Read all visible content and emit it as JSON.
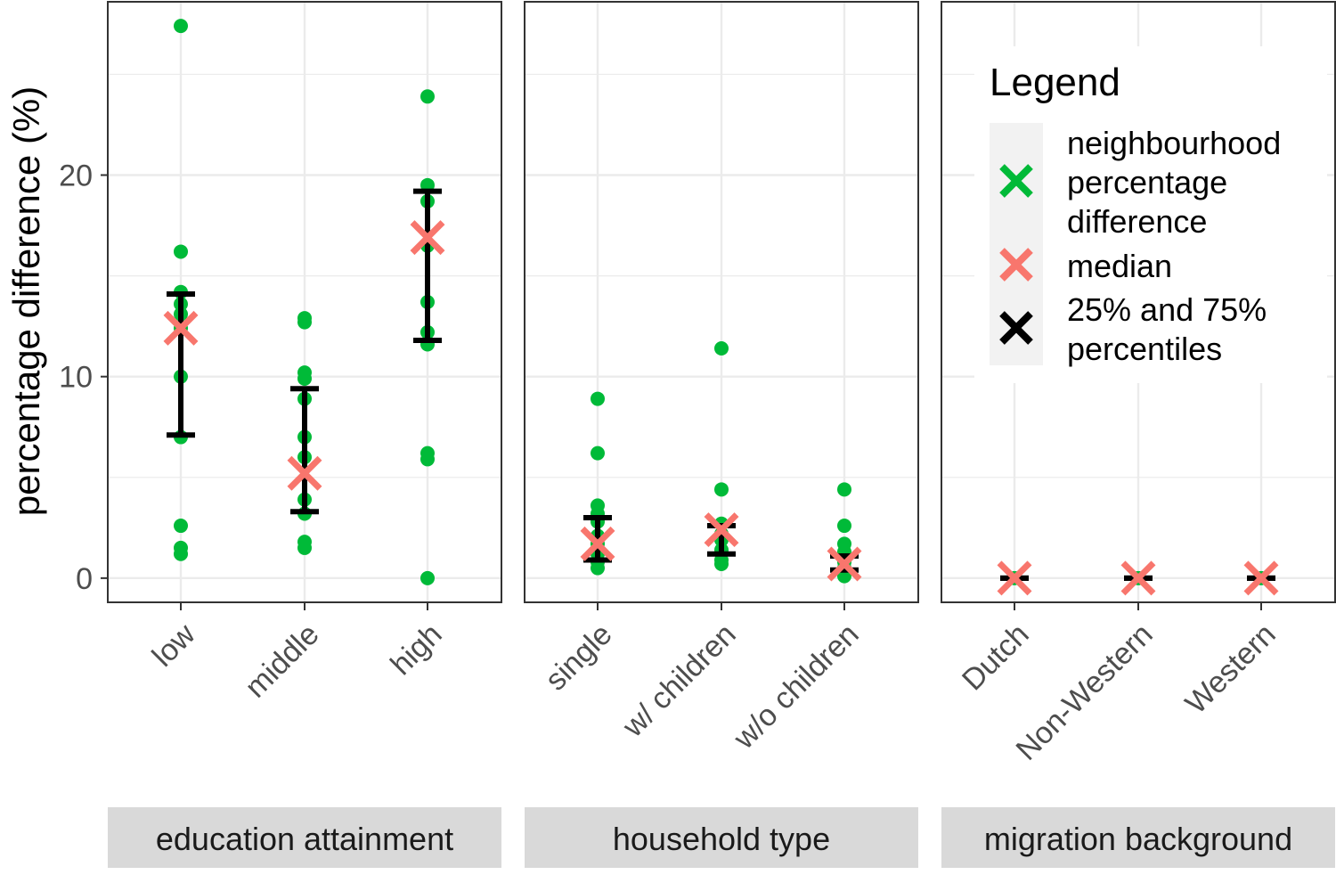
{
  "chart_data": {
    "type": "scatter",
    "ylabel": "percentage difference (%)",
    "xlabel": "",
    "ylim": [
      -1.2,
      28.6
    ],
    "yticks": [
      0,
      10,
      20
    ],
    "grid": true,
    "legend_position": "inside top-right",
    "colors": {
      "points": "#00BA38",
      "median": "#F8766D",
      "percentiles": "#000000",
      "strip": "#D9D9D9",
      "grid": "#EBEBEB"
    },
    "legend": {
      "title": "Legend",
      "entries": [
        {
          "label": "neighbourhood percentage difference",
          "lines": [
            "neighbourhood",
            "percentage",
            "difference"
          ],
          "color": "#00BA38"
        },
        {
          "label": "median",
          "lines": [
            "median"
          ],
          "color": "#F8766D"
        },
        {
          "label": "25% and 75% percentiles",
          "lines": [
            "25% and 75%",
            "percentiles"
          ],
          "color": "#000000"
        }
      ]
    },
    "panels": [
      {
        "strip": "education attainment",
        "categories": [
          {
            "name": "low",
            "points": [
              27.4,
              16.2,
              14.2,
              13.6,
              13.1,
              12.4,
              10.0,
              7.0,
              2.6,
              1.5,
              1.2
            ],
            "median": 12.4,
            "q25": 7.1,
            "q75": 14.1
          },
          {
            "name": "middle",
            "points": [
              12.9,
              12.7,
              10.2,
              9.9,
              8.9,
              7.0,
              6.0,
              3.9,
              3.2,
              1.8,
              1.5
            ],
            "median": 5.2,
            "q25": 3.3,
            "q75": 9.4
          },
          {
            "name": "high",
            "points": [
              23.9,
              19.5,
              18.7,
              16.5,
              13.7,
              12.2,
              11.6,
              6.2,
              5.9,
              0.0
            ],
            "median": 16.9,
            "q25": 11.8,
            "q75": 19.2
          }
        ]
      },
      {
        "strip": "household type",
        "categories": [
          {
            "name": "single",
            "points": [
              8.9,
              6.2,
              3.6,
              3.2,
              2.8,
              2.1,
              1.7,
              1.2,
              0.8,
              0.5
            ],
            "median": 1.7,
            "q25": 0.9,
            "q75": 3.0
          },
          {
            "name": "w/ children",
            "points": [
              11.4,
              4.4,
              2.7,
              2.2,
              1.9,
              1.4,
              0.9,
              0.7
            ],
            "median": 2.4,
            "q25": 1.2,
            "q75": 2.6
          },
          {
            "name": "w/o children",
            "points": [
              4.4,
              2.6,
              1.7,
              1.3,
              0.8,
              0.5,
              0.3,
              0.1
            ],
            "median": 0.7,
            "q25": 0.4,
            "q75": 1.1
          }
        ]
      },
      {
        "strip": "migration background",
        "categories": [
          {
            "name": "Dutch",
            "points": [
              0.0
            ],
            "median": 0.0,
            "q25": 0.0,
            "q75": 0.0
          },
          {
            "name": "Non-Western",
            "points": [
              0.0
            ],
            "median": 0.0,
            "q25": 0.0,
            "q75": 0.0
          },
          {
            "name": "Western",
            "points": [
              0.0
            ],
            "median": 0.0,
            "q25": 0.0,
            "q75": 0.0
          }
        ]
      }
    ]
  }
}
